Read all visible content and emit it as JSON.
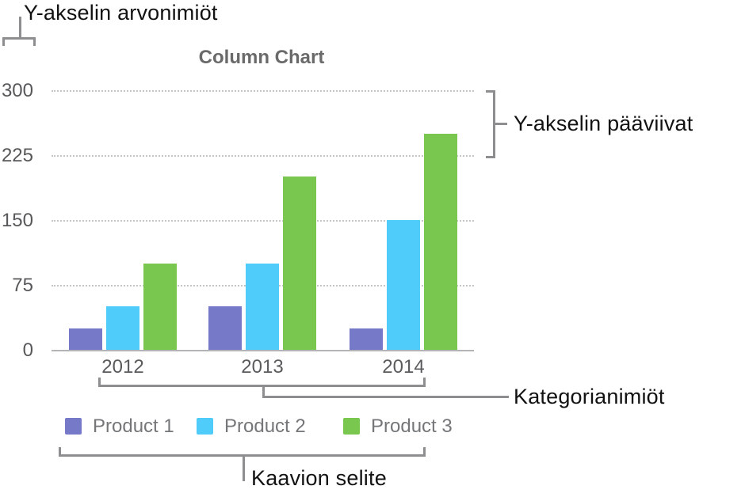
{
  "annotations": {
    "y_value_labels": "Y-akselin arvonimiöt",
    "y_gridlines": "Y-akselin pääviivat",
    "category_labels": "Kategorianimiöt",
    "legend": "Kaavion selite"
  },
  "chart_data": {
    "type": "bar",
    "title": "Column Chart",
    "categories": [
      "2012",
      "2013",
      "2014"
    ],
    "series": [
      {
        "name": "Product 1",
        "color": "#7579c7",
        "values": [
          25,
          50,
          25
        ]
      },
      {
        "name": "Product 2",
        "color": "#4fccf9",
        "values": [
          50,
          100,
          150
        ]
      },
      {
        "name": "Product 3",
        "color": "#79c74e",
        "values": [
          100,
          200,
          250
        ]
      }
    ],
    "y_ticks": [
      0,
      75,
      150,
      225,
      300
    ],
    "ylim": [
      0,
      300
    ],
    "xlabel": "",
    "ylabel": "",
    "grid": "horizontal-dotted",
    "legend_position": "bottom"
  },
  "colors": {
    "title": "#6a6a6a",
    "axis_label": "#58585a",
    "legend_text": "#747678",
    "gridline": "#c6c6c6",
    "axis_line": "#b4b4b6",
    "bracket": "#8e8e90",
    "annotation_text": "#121212"
  }
}
